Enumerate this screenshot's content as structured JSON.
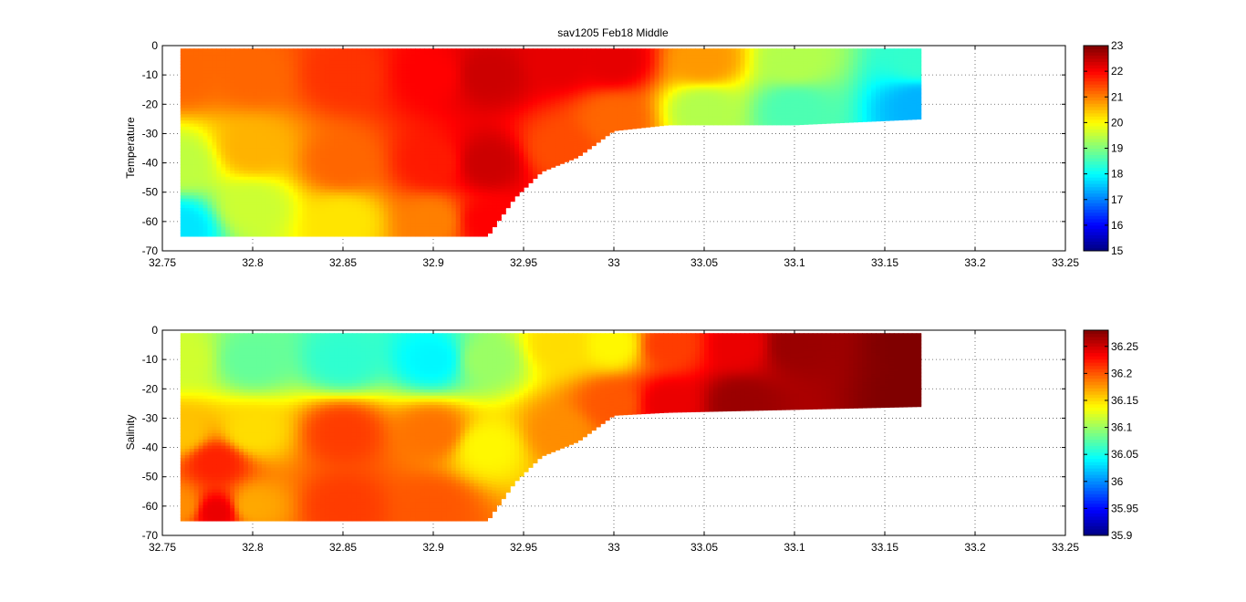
{
  "figure_title": "sav1205 Feb18 Middle",
  "chart_data": [
    {
      "type": "heatmap",
      "title": "sav1205 Feb18 Middle",
      "xlabel": "",
      "ylabel": "Temperature",
      "xlim": [
        32.75,
        33.25
      ],
      "ylim": [
        -70,
        0
      ],
      "xticks": [
        "32.75",
        "32.8",
        "32.85",
        "32.9",
        "32.95",
        "33",
        "33.05",
        "33.1",
        "33.15",
        "33.2",
        "33.25"
      ],
      "yticks": [
        "0",
        "-10",
        "-20",
        "-30",
        "-40",
        "-50",
        "-60",
        "-70"
      ],
      "grid": true,
      "colorbar": {
        "min": 15,
        "max": 23,
        "ticks": [
          "23",
          "22",
          "21",
          "20",
          "19",
          "18",
          "17",
          "16",
          "15"
        ]
      },
      "profile_x_range": [
        32.76,
        33.17
      ],
      "bottom_depth": [
        [
          32.76,
          -65
        ],
        [
          32.93,
          -65
        ],
        [
          32.945,
          -52
        ],
        [
          32.96,
          -43
        ],
        [
          32.98,
          -38
        ],
        [
          33.0,
          -29
        ],
        [
          33.03,
          -27
        ],
        [
          33.1,
          -27
        ],
        [
          33.17,
          -25
        ]
      ],
      "field_anchors": [
        {
          "x": 32.76,
          "y": -10,
          "value": 21.2
        },
        {
          "x": 32.76,
          "y": -40,
          "value": 19.5
        },
        {
          "x": 32.76,
          "y": -62,
          "value": 17.8
        },
        {
          "x": 32.8,
          "y": -10,
          "value": 21.2
        },
        {
          "x": 32.8,
          "y": -35,
          "value": 20.6
        },
        {
          "x": 32.8,
          "y": -55,
          "value": 19.6
        },
        {
          "x": 32.85,
          "y": -10,
          "value": 21.6
        },
        {
          "x": 32.85,
          "y": -40,
          "value": 21.2
        },
        {
          "x": 32.85,
          "y": -60,
          "value": 20.2
        },
        {
          "x": 32.9,
          "y": -10,
          "value": 22.0
        },
        {
          "x": 32.9,
          "y": -40,
          "value": 21.8
        },
        {
          "x": 32.9,
          "y": -60,
          "value": 21.0
        },
        {
          "x": 32.93,
          "y": -10,
          "value": 22.4
        },
        {
          "x": 32.93,
          "y": -40,
          "value": 22.4
        },
        {
          "x": 32.93,
          "y": -60,
          "value": 22.0
        },
        {
          "x": 32.97,
          "y": -5,
          "value": 22.2
        },
        {
          "x": 32.97,
          "y": -35,
          "value": 21.4
        },
        {
          "x": 33.0,
          "y": -5,
          "value": 22.2
        },
        {
          "x": 33.0,
          "y": -25,
          "value": 21.2
        },
        {
          "x": 33.05,
          "y": -5,
          "value": 20.8
        },
        {
          "x": 33.05,
          "y": -22,
          "value": 19.4
        },
        {
          "x": 33.1,
          "y": -5,
          "value": 19.4
        },
        {
          "x": 33.1,
          "y": -22,
          "value": 18.6
        },
        {
          "x": 33.17,
          "y": -5,
          "value": 18.4
        },
        {
          "x": 33.17,
          "y": -20,
          "value": 17.4
        }
      ]
    },
    {
      "type": "heatmap",
      "xlabel": "",
      "ylabel": "Salinity",
      "xlim": [
        32.75,
        33.25
      ],
      "ylim": [
        -70,
        0
      ],
      "xticks": [
        "32.75",
        "32.8",
        "32.85",
        "32.9",
        "32.95",
        "33",
        "33.05",
        "33.1",
        "33.15",
        "33.2",
        "33.25"
      ],
      "yticks": [
        "0",
        "-10",
        "-20",
        "-30",
        "-40",
        "-50",
        "-60",
        "-70"
      ],
      "grid": true,
      "colorbar": {
        "min": 35.9,
        "max": 36.28,
        "ticks": [
          "36.25",
          "36.2",
          "36.15",
          "36.1",
          "36.05",
          "36",
          "35.95",
          "35.9"
        ]
      },
      "profile_x_range": [
        32.76,
        33.17
      ],
      "bottom_depth": [
        [
          32.76,
          -65
        ],
        [
          32.93,
          -65
        ],
        [
          32.945,
          -52
        ],
        [
          32.96,
          -43
        ],
        [
          32.98,
          -38
        ],
        [
          33.0,
          -29
        ],
        [
          33.03,
          -28
        ],
        [
          33.1,
          -27
        ],
        [
          33.17,
          -26
        ]
      ],
      "field_anchors": [
        {
          "x": 32.76,
          "y": -10,
          "value": 36.12
        },
        {
          "x": 32.76,
          "y": -35,
          "value": 36.16
        },
        {
          "x": 32.76,
          "y": -60,
          "value": 36.18
        },
        {
          "x": 32.78,
          "y": -45,
          "value": 36.22
        },
        {
          "x": 32.78,
          "y": -62,
          "value": 36.24
        },
        {
          "x": 32.8,
          "y": -10,
          "value": 36.08
        },
        {
          "x": 32.8,
          "y": -35,
          "value": 36.15
        },
        {
          "x": 32.8,
          "y": -60,
          "value": 36.17
        },
        {
          "x": 32.85,
          "y": -10,
          "value": 36.06
        },
        {
          "x": 32.85,
          "y": -35,
          "value": 36.21
        },
        {
          "x": 32.85,
          "y": -60,
          "value": 36.21
        },
        {
          "x": 32.9,
          "y": -10,
          "value": 36.04
        },
        {
          "x": 32.9,
          "y": -35,
          "value": 36.19
        },
        {
          "x": 32.9,
          "y": -60,
          "value": 36.2
        },
        {
          "x": 32.93,
          "y": -10,
          "value": 36.1
        },
        {
          "x": 32.93,
          "y": -40,
          "value": 36.14
        },
        {
          "x": 32.97,
          "y": -5,
          "value": 36.15
        },
        {
          "x": 32.97,
          "y": -35,
          "value": 36.18
        },
        {
          "x": 33.0,
          "y": -5,
          "value": 36.14
        },
        {
          "x": 33.0,
          "y": -25,
          "value": 36.2
        },
        {
          "x": 33.03,
          "y": -5,
          "value": 36.21
        },
        {
          "x": 33.03,
          "y": -25,
          "value": 36.24
        },
        {
          "x": 33.07,
          "y": -5,
          "value": 36.24
        },
        {
          "x": 33.07,
          "y": -25,
          "value": 36.27
        },
        {
          "x": 33.1,
          "y": -5,
          "value": 36.27
        },
        {
          "x": 33.17,
          "y": -5,
          "value": 36.28
        },
        {
          "x": 33.17,
          "y": -22,
          "value": 36.28
        }
      ]
    }
  ]
}
